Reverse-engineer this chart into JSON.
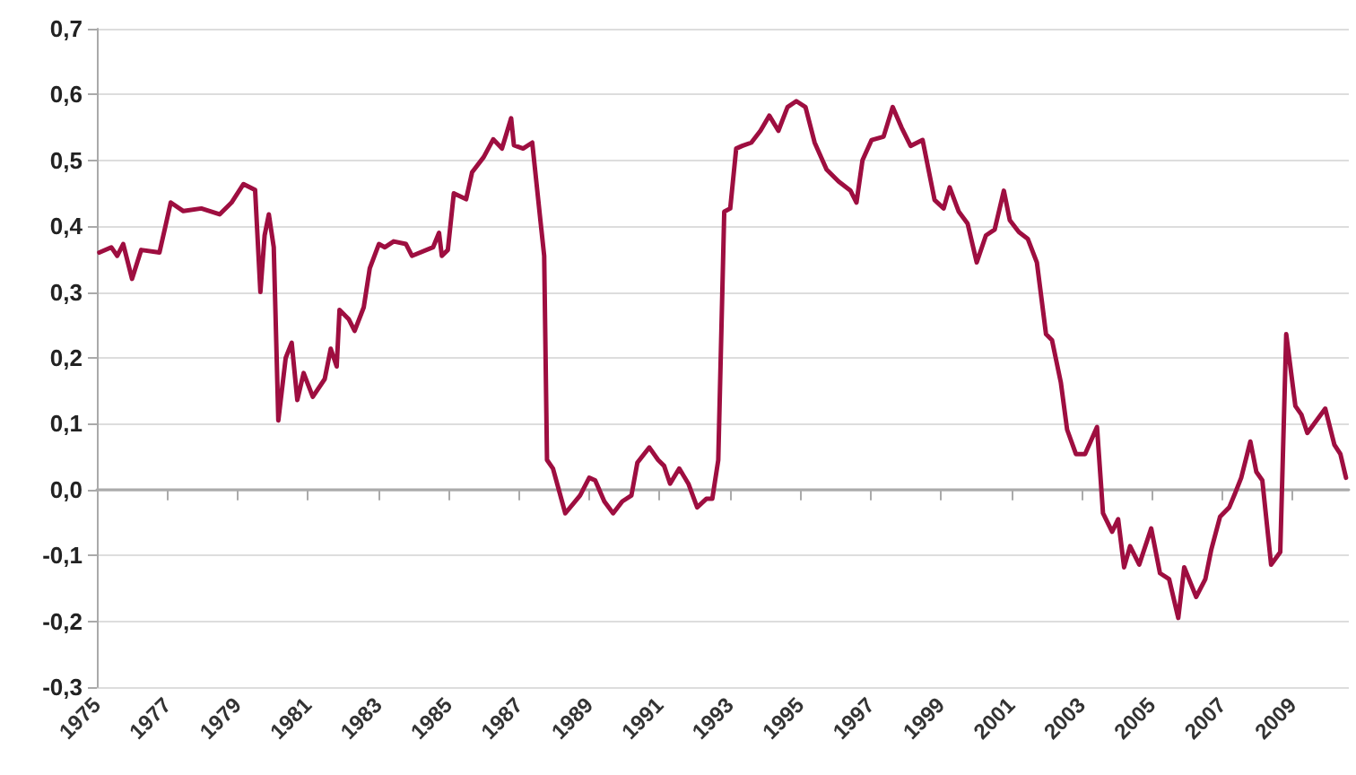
{
  "chart_data": {
    "type": "line",
    "color": "#9e0e40",
    "grid": "y",
    "marker": "none",
    "line_style": "solid",
    "x": [
      1975.07,
      1975.41,
      1975.58,
      1975.75,
      1976.0,
      1976.26,
      1976.78,
      1976.95,
      1977.1,
      1977.46,
      1977.97,
      1978.49,
      1978.83,
      1979.17,
      1979.5,
      1979.65,
      1979.77,
      1979.89,
      1980.03,
      1980.16,
      1980.37,
      1980.54,
      1980.7,
      1980.88,
      1981.14,
      1981.48,
      1981.65,
      1981.82,
      1981.9,
      1982.16,
      1982.33,
      1982.59,
      1982.76,
      1983.02,
      1983.19,
      1983.44,
      1983.79,
      1983.96,
      1984.56,
      1984.73,
      1984.81,
      1984.98,
      1985.15,
      1985.5,
      1985.67,
      1986.0,
      1986.27,
      1986.52,
      1986.78,
      1986.86,
      1987.12,
      1987.38,
      1987.63,
      1987.72,
      1987.8,
      1987.97,
      1988.32,
      1988.74,
      1989.0,
      1989.17,
      1989.43,
      1989.68,
      1989.94,
      1990.2,
      1990.37,
      1990.71,
      1990.96,
      1991.13,
      1991.3,
      1991.56,
      1991.82,
      1992.07,
      1992.33,
      1992.5,
      1992.67,
      1992.84,
      1993.01,
      1993.18,
      1993.35,
      1993.61,
      1993.87,
      1994.12,
      1994.38,
      1994.64,
      1994.89,
      1995.15,
      1995.41,
      1995.75,
      1996.09,
      1996.43,
      1996.6,
      1996.77,
      1997.03,
      1997.37,
      1997.63,
      1997.88,
      1998.14,
      1998.48,
      1998.82,
      1999.08,
      1999.25,
      1999.51,
      1999.76,
      2000.02,
      2000.28,
      2000.53,
      2000.79,
      2000.96,
      2001.22,
      2001.47,
      2001.73,
      2001.99,
      2002.16,
      2002.41,
      2002.59,
      2002.84,
      2003.1,
      2003.44,
      2003.61,
      2003.87,
      2004.04,
      2004.21,
      2004.38,
      2004.64,
      2004.98,
      2005.23,
      2005.49,
      2005.75,
      2005.92,
      2006.26,
      2006.52,
      2006.69,
      2006.94,
      2007.2,
      2007.37,
      2007.54,
      2007.8,
      2007.97,
      2008.14,
      2008.39,
      2008.65,
      2008.82,
      2009.08,
      2009.25,
      2009.42,
      2009.93,
      2010.19,
      2010.36,
      2010.52
    ],
    "values": [
      0.36,
      0.368,
      0.355,
      0.373,
      0.32,
      0.364,
      0.36,
      0.4,
      0.436,
      0.423,
      0.427,
      0.418,
      0.436,
      0.464,
      0.455,
      0.3,
      0.386,
      0.418,
      0.368,
      0.105,
      0.2,
      0.223,
      0.136,
      0.177,
      0.141,
      0.168,
      0.214,
      0.187,
      0.273,
      0.259,
      0.241,
      0.277,
      0.336,
      0.373,
      0.368,
      0.377,
      0.373,
      0.355,
      0.368,
      0.39,
      0.355,
      0.364,
      0.45,
      0.441,
      0.482,
      0.505,
      0.532,
      0.518,
      0.564,
      0.523,
      0.518,
      0.527,
      0.4,
      0.355,
      0.045,
      0.032,
      -0.036,
      -0.009,
      0.018,
      0.014,
      -0.018,
      -0.036,
      -0.018,
      -0.009,
      0.041,
      0.064,
      0.045,
      0.036,
      0.009,
      0.032,
      0.009,
      -0.027,
      -0.014,
      -0.014,
      0.045,
      0.422,
      0.427,
      0.518,
      0.522,
      0.527,
      0.545,
      0.568,
      0.545,
      0.581,
      0.59,
      0.581,
      0.527,
      0.486,
      0.468,
      0.454,
      0.436,
      0.5,
      0.531,
      0.536,
      0.581,
      0.55,
      0.522,
      0.531,
      0.44,
      0.427,
      0.459,
      0.422,
      0.404,
      0.345,
      0.386,
      0.395,
      0.454,
      0.409,
      0.391,
      0.381,
      0.345,
      0.236,
      0.227,
      0.163,
      0.091,
      0.054,
      0.054,
      0.095,
      -0.036,
      -0.064,
      -0.045,
      -0.118,
      -0.086,
      -0.114,
      -0.059,
      -0.127,
      -0.136,
      -0.195,
      -0.118,
      -0.163,
      -0.136,
      -0.091,
      -0.041,
      -0.027,
      -0.005,
      0.018,
      0.073,
      0.027,
      0.014,
      -0.114,
      -0.095,
      0.236,
      0.127,
      0.114,
      0.086,
      0.123,
      0.068,
      0.054,
      0.018
    ],
    "xlim": [
      1975,
      2010.6
    ],
    "xticks": [
      1975,
      1977,
      1979,
      1981,
      1983,
      1985,
      1987,
      1989,
      1991,
      1993,
      1995,
      1997,
      1999,
      2001,
      2003,
      2005,
      2007,
      2009
    ],
    "ylim": [
      -0.3,
      0.7
    ],
    "yticks": [
      {
        "value": -0.3,
        "label": "-0,3"
      },
      {
        "value": -0.2,
        "label": "-0,2"
      },
      {
        "value": -0.1,
        "label": "-0,1"
      },
      {
        "value": 0,
        "label": "0,0"
      },
      {
        "value": 0.1,
        "label": "0,1"
      },
      {
        "value": 0.2,
        "label": "0,2"
      },
      {
        "value": 0.3,
        "label": "0,3"
      },
      {
        "value": 0.4,
        "label": "0,4"
      },
      {
        "value": 0.5,
        "label": "0,5"
      },
      {
        "value": 0.6,
        "label": "0,6"
      },
      {
        "value": 0.7,
        "label": "0,7"
      }
    ]
  }
}
